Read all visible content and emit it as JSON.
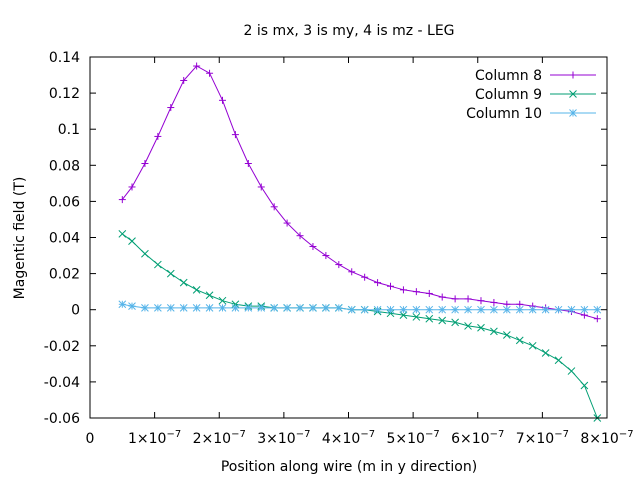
{
  "chart_data": {
    "type": "line",
    "title": "2 is mx, 3 is my, 4 is mz - LEG",
    "xlabel": "Position along wire (m in y direction)",
    "ylabel": "Magentic field (T)",
    "xlim": [
      0,
      8e-07
    ],
    "ylim": [
      -0.06,
      0.14
    ],
    "grid": false,
    "legend_position": "top-right",
    "x_ticks": [
      {
        "value": 0,
        "label": "0"
      },
      {
        "value": 1e-07,
        "label": "1×10",
        "exp": "−7"
      },
      {
        "value": 2e-07,
        "label": "2×10",
        "exp": "−7"
      },
      {
        "value": 3e-07,
        "label": "3×10",
        "exp": "−7"
      },
      {
        "value": 4e-07,
        "label": "4×10",
        "exp": "−7"
      },
      {
        "value": 5e-07,
        "label": "5×10",
        "exp": "−7"
      },
      {
        "value": 6e-07,
        "label": "6×10",
        "exp": "−7"
      },
      {
        "value": 7e-07,
        "label": "7×10",
        "exp": "−7"
      },
      {
        "value": 8e-07,
        "label": "8×10",
        "exp": "−7"
      }
    ],
    "y_ticks": [
      {
        "value": 0.14,
        "label": "0.14"
      },
      {
        "value": 0.12,
        "label": "0.12"
      },
      {
        "value": 0.1,
        "label": "0.1"
      },
      {
        "value": 0.08,
        "label": "0.08"
      },
      {
        "value": 0.06,
        "label": "0.06"
      },
      {
        "value": 0.04,
        "label": "0.04"
      },
      {
        "value": 0.02,
        "label": "0.02"
      },
      {
        "value": 0,
        "label": "0"
      },
      {
        "value": -0.02,
        "label": "-0.02"
      },
      {
        "value": -0.04,
        "label": "-0.04"
      },
      {
        "value": -0.06,
        "label": "-0.06"
      }
    ],
    "x": [
      5e-08,
      6.5e-08,
      8.5e-08,
      1.05e-07,
      1.25e-07,
      1.45e-07,
      1.65e-07,
      1.85e-07,
      2.05e-07,
      2.25e-07,
      2.45e-07,
      2.65e-07,
      2.85e-07,
      3.05e-07,
      3.25e-07,
      3.45e-07,
      3.65e-07,
      3.85e-07,
      4.05e-07,
      4.25e-07,
      4.45e-07,
      4.65e-07,
      4.85e-07,
      5.05e-07,
      5.25e-07,
      5.45e-07,
      5.65e-07,
      5.85e-07,
      6.05e-07,
      6.25e-07,
      6.45e-07,
      6.65e-07,
      6.85e-07,
      7.05e-07,
      7.25e-07,
      7.45e-07,
      7.65e-07,
      7.85e-07
    ],
    "series": [
      {
        "name": "Column 8",
        "color": "#9400d3",
        "marker": "plus",
        "values": [
          0.061,
          0.068,
          0.081,
          0.096,
          0.112,
          0.127,
          0.135,
          0.131,
          0.116,
          0.097,
          0.081,
          0.068,
          0.057,
          0.048,
          0.041,
          0.035,
          0.03,
          0.025,
          0.021,
          0.018,
          0.015,
          0.013,
          0.011,
          0.01,
          0.009,
          0.007,
          0.006,
          0.006,
          0.005,
          0.004,
          0.003,
          0.003,
          0.002,
          0.001,
          0.0,
          -0.001,
          -0.003,
          -0.005
        ]
      },
      {
        "name": "Column 9",
        "color": "#009e73",
        "marker": "cross",
        "values": [
          0.042,
          0.038,
          0.031,
          0.025,
          0.02,
          0.015,
          0.011,
          0.008,
          0.005,
          0.003,
          0.002,
          0.002,
          0.001,
          0.001,
          0.001,
          0.001,
          0.001,
          0.001,
          0.0,
          0.0,
          -0.001,
          -0.002,
          -0.003,
          -0.004,
          -0.005,
          -0.006,
          -0.007,
          -0.009,
          -0.01,
          -0.012,
          -0.014,
          -0.017,
          -0.02,
          -0.024,
          -0.028,
          -0.034,
          -0.042,
          -0.06
        ]
      },
      {
        "name": "Column 10",
        "color": "#56b4e9",
        "marker": "star",
        "values": [
          0.003,
          0.002,
          0.001,
          0.001,
          0.001,
          0.001,
          0.001,
          0.001,
          0.001,
          0.001,
          0.001,
          0.001,
          0.001,
          0.001,
          0.001,
          0.001,
          0.001,
          0.001,
          0.0,
          0.0,
          0.0,
          0.0,
          0.0,
          0.0,
          0.0,
          0.0,
          0.0,
          0.0,
          0.0,
          0.0,
          0.0,
          0.0,
          0.0,
          0.0,
          0.0,
          0.0,
          0.0,
          0.0
        ]
      }
    ]
  }
}
